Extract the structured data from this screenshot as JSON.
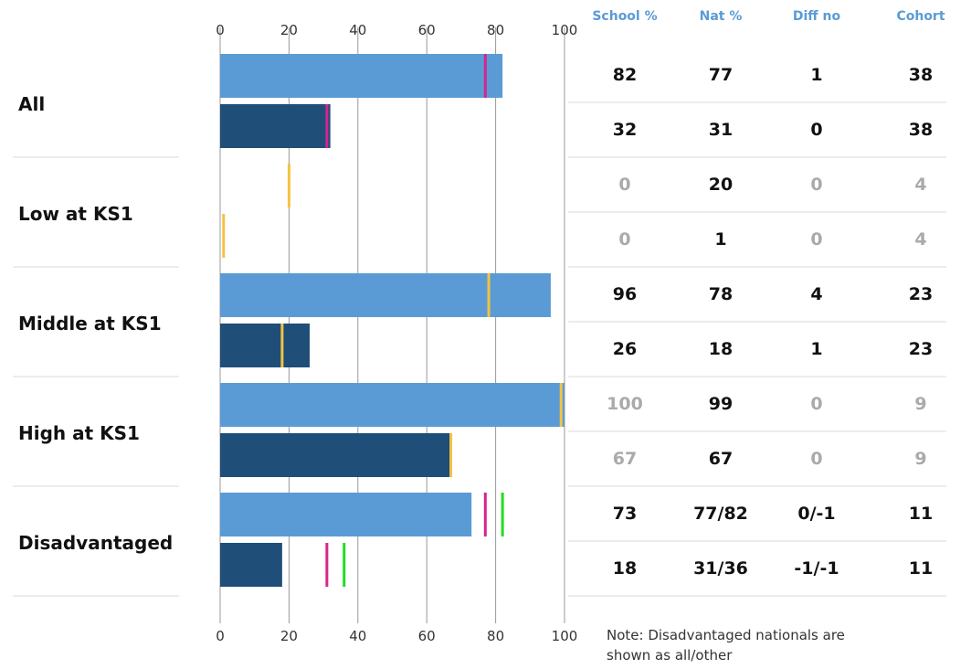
{
  "chart_data": {
    "type": "bar",
    "orientation": "horizontal",
    "xlim": [
      0,
      100
    ],
    "ticks": [
      0,
      20,
      40,
      60,
      80,
      100
    ],
    "grid": true,
    "columns": [
      "School %",
      "Nat %",
      "Diff no",
      "Cohort"
    ],
    "colors": {
      "bar_light": "#5b9bd5",
      "bar_dark": "#1f4e79",
      "nat_marker_magenta": "#d6248f",
      "nat_marker_yellow": "#f5c242",
      "other_marker_green": "#22dd22",
      "header_blue": "#5b9bd5",
      "text_dark": "#111111",
      "text_muted": "#aaaaaa",
      "grid": "#999999",
      "row_line": "#d9d9d9"
    },
    "groups": [
      {
        "label": "All",
        "rows": [
          {
            "bar": "light",
            "value": 82,
            "markers": [
              {
                "value": 77,
                "color": "magenta"
              }
            ],
            "cells": [
              "82",
              "77",
              "1",
              "38"
            ],
            "muted": [
              false,
              false,
              false,
              false
            ]
          },
          {
            "bar": "dark",
            "value": 32,
            "markers": [
              {
                "value": 31,
                "color": "magenta"
              }
            ],
            "cells": [
              "32",
              "31",
              "0",
              "38"
            ],
            "muted": [
              false,
              false,
              false,
              false
            ]
          }
        ]
      },
      {
        "label": "Low at KS1",
        "rows": [
          {
            "bar": "light",
            "value": 0,
            "markers": [
              {
                "value": 20,
                "color": "yellow"
              }
            ],
            "cells": [
              "0",
              "20",
              "0",
              "4"
            ],
            "muted": [
              true,
              false,
              true,
              true
            ]
          },
          {
            "bar": "dark",
            "value": 0,
            "markers": [
              {
                "value": 1,
                "color": "yellow"
              }
            ],
            "cells": [
              "0",
              "1",
              "0",
              "4"
            ],
            "muted": [
              true,
              false,
              true,
              true
            ]
          }
        ]
      },
      {
        "label": "Middle at KS1",
        "rows": [
          {
            "bar": "light",
            "value": 96,
            "markers": [
              {
                "value": 78,
                "color": "yellow"
              }
            ],
            "cells": [
              "96",
              "78",
              "4",
              "23"
            ],
            "muted": [
              false,
              false,
              false,
              false
            ]
          },
          {
            "bar": "dark",
            "value": 26,
            "markers": [
              {
                "value": 18,
                "color": "yellow"
              }
            ],
            "cells": [
              "26",
              "18",
              "1",
              "23"
            ],
            "muted": [
              false,
              false,
              false,
              false
            ]
          }
        ]
      },
      {
        "label": "High at KS1",
        "rows": [
          {
            "bar": "light",
            "value": 100,
            "markers": [
              {
                "value": 99,
                "color": "yellow"
              }
            ],
            "cells": [
              "100",
              "99",
              "0",
              "9"
            ],
            "muted": [
              true,
              false,
              true,
              true
            ]
          },
          {
            "bar": "dark",
            "value": 67,
            "markers": [
              {
                "value": 67,
                "color": "yellow"
              }
            ],
            "cells": [
              "67",
              "67",
              "0",
              "9"
            ],
            "muted": [
              true,
              false,
              true,
              true
            ]
          }
        ]
      },
      {
        "label": "Disadvantaged",
        "rows": [
          {
            "bar": "light",
            "value": 73,
            "markers": [
              {
                "value": 77,
                "color": "magenta"
              },
              {
                "value": 82,
                "color": "green"
              }
            ],
            "cells": [
              "73",
              "77/82",
              "0/-1",
              "11"
            ],
            "muted": [
              false,
              false,
              false,
              false
            ]
          },
          {
            "bar": "dark",
            "value": 18,
            "markers": [
              {
                "value": 31,
                "color": "magenta"
              },
              {
                "value": 36,
                "color": "green"
              }
            ],
            "cells": [
              "18",
              "31/36",
              "-1/-1",
              "11"
            ],
            "muted": [
              false,
              false,
              false,
              false
            ]
          }
        ]
      }
    ]
  },
  "note": "Note: Disadvantaged nationals are shown as all/other"
}
